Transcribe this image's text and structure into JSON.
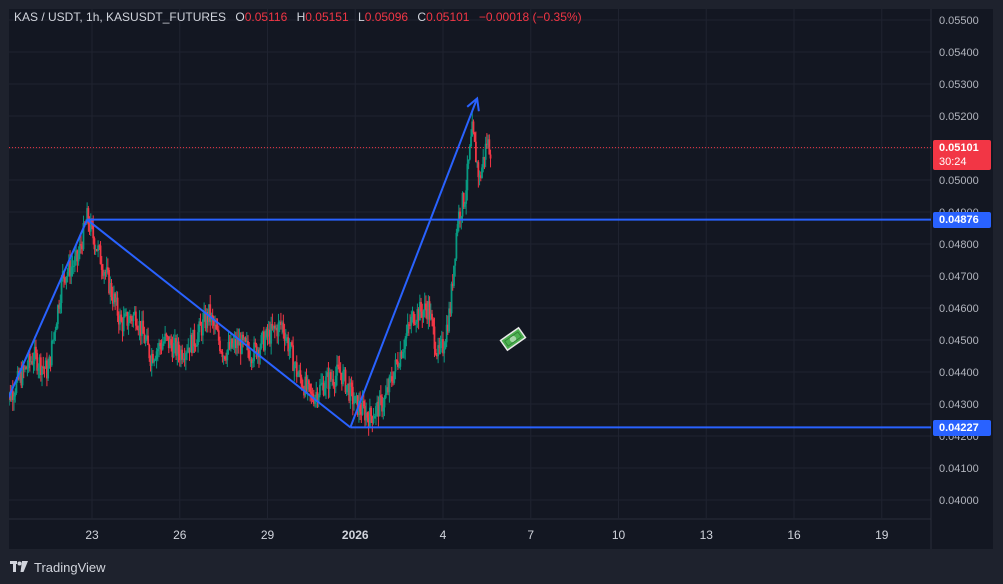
{
  "legend": {
    "symbol": "KAS / USDT, 1h, KASUSDT_FUTURES",
    "o_label": "O",
    "o_value": "0.05116",
    "h_label": "H",
    "h_value": "0.05151",
    "l_label": "L",
    "l_value": "0.05096",
    "c_label": "C",
    "c_value": "0.05101",
    "change": "−0.00018 (−0.35%)"
  },
  "footer": {
    "brand": "TradingView"
  },
  "price_badge": {
    "price": "0.05101",
    "countdown": "30:24"
  },
  "level_badges": {
    "upper": "0.04876",
    "lower": "0.04227"
  },
  "colors": {
    "up": "#089981",
    "down": "#f23645",
    "drawing": "#2962ff",
    "badge_blue": "#2962ff",
    "badge_red": "#f23645"
  },
  "icons": [
    "money-bill-sticker-icon",
    "tradingview-logo-icon"
  ],
  "chart_data": {
    "type": "candlestick",
    "x_ticks": [
      "23",
      "26",
      "29",
      "2026",
      "4",
      "7",
      "10",
      "13",
      "16",
      "19"
    ],
    "y_ticks": [
      "0.05500",
      "0.05400",
      "0.05300",
      "0.05200",
      "0.05100",
      "0.05000",
      "0.04900",
      "0.04800",
      "0.04700",
      "0.04600",
      "0.04500",
      "0.04400",
      "0.04300",
      "0.04200",
      "0.04100",
      "0.04000"
    ],
    "ylim": [
      0.0394,
      0.0556
    ],
    "last_price": 0.05101,
    "horizontal_levels": [
      0.04876,
      0.04227
    ],
    "price_path": [
      [
        "2025-12-20T00:00",
        0.043
      ],
      [
        "2025-12-21T00:00",
        0.0445
      ],
      [
        "2025-12-21T12:00",
        0.044
      ],
      [
        "2025-12-22T00:00",
        0.047
      ],
      [
        "2025-12-22T12:00",
        0.0475
      ],
      [
        "2025-12-22T20:00",
        0.0488
      ],
      [
        "2025-12-23T12:00",
        0.047
      ],
      [
        "2025-12-24T00:00",
        0.0455
      ],
      [
        "2025-12-24T12:00",
        0.0458
      ],
      [
        "2025-12-25T00:00",
        0.0445
      ],
      [
        "2025-12-25T12:00",
        0.045
      ],
      [
        "2025-12-26T00:00",
        0.0446
      ],
      [
        "2025-12-26T12:00",
        0.045
      ],
      [
        "2025-12-27T00:00",
        0.0458
      ],
      [
        "2025-12-27T12:00",
        0.0446
      ],
      [
        "2025-12-28T00:00",
        0.0449
      ],
      [
        "2025-12-28T12:00",
        0.0446
      ],
      [
        "2025-12-29T00:00",
        0.0451
      ],
      [
        "2025-12-29T12:00",
        0.0455
      ],
      [
        "2025-12-30T00:00",
        0.044
      ],
      [
        "2025-12-30T12:00",
        0.0432
      ],
      [
        "2025-12-31T00:00",
        0.0437
      ],
      [
        "2025-12-31T12:00",
        0.044
      ],
      [
        "2026-01-01T00:00",
        0.043
      ],
      [
        "2026-01-01T12:00",
        0.0426
      ],
      [
        "2026-01-02T00:00",
        0.0431
      ],
      [
        "2026-01-02T12:00",
        0.0445
      ],
      [
        "2026-01-03T00:00",
        0.0458
      ],
      [
        "2026-01-03T12:00",
        0.046
      ],
      [
        "2026-01-03T20:00",
        0.0445
      ],
      [
        "2026-01-04T00:00",
        0.0448
      ],
      [
        "2026-01-04T06:00",
        0.046
      ],
      [
        "2026-01-04T12:00",
        0.0488
      ],
      [
        "2026-01-04T18:00",
        0.0495
      ],
      [
        "2026-01-05T00:00",
        0.0515
      ],
      [
        "2026-01-05T06:00",
        0.05
      ],
      [
        "2026-01-05T12:00",
        0.0512
      ],
      [
        "2026-01-05T15:00",
        0.051
      ]
    ],
    "drawings": [
      {
        "type": "trendline",
        "from": [
          "2025-12-20T00:00",
          0.0429
        ],
        "to": [
          "2025-12-22T20:00",
          0.04876
        ]
      },
      {
        "type": "trendline",
        "from": [
          "2025-12-22T20:00",
          0.04876
        ],
        "to": [
          "2025-12-31T20:00",
          0.04227
        ]
      },
      {
        "type": "arrow",
        "from": [
          "2025-12-31T20:00",
          0.04227
        ],
        "to": [
          "2026-01-05T04:00",
          0.05255
        ]
      },
      {
        "type": "horizontal_ray",
        "from": [
          "2025-12-22T20:00",
          0.04876
        ]
      },
      {
        "type": "horizontal_ray",
        "from": [
          "2025-12-31T20:00",
          0.04227
        ]
      }
    ]
  }
}
